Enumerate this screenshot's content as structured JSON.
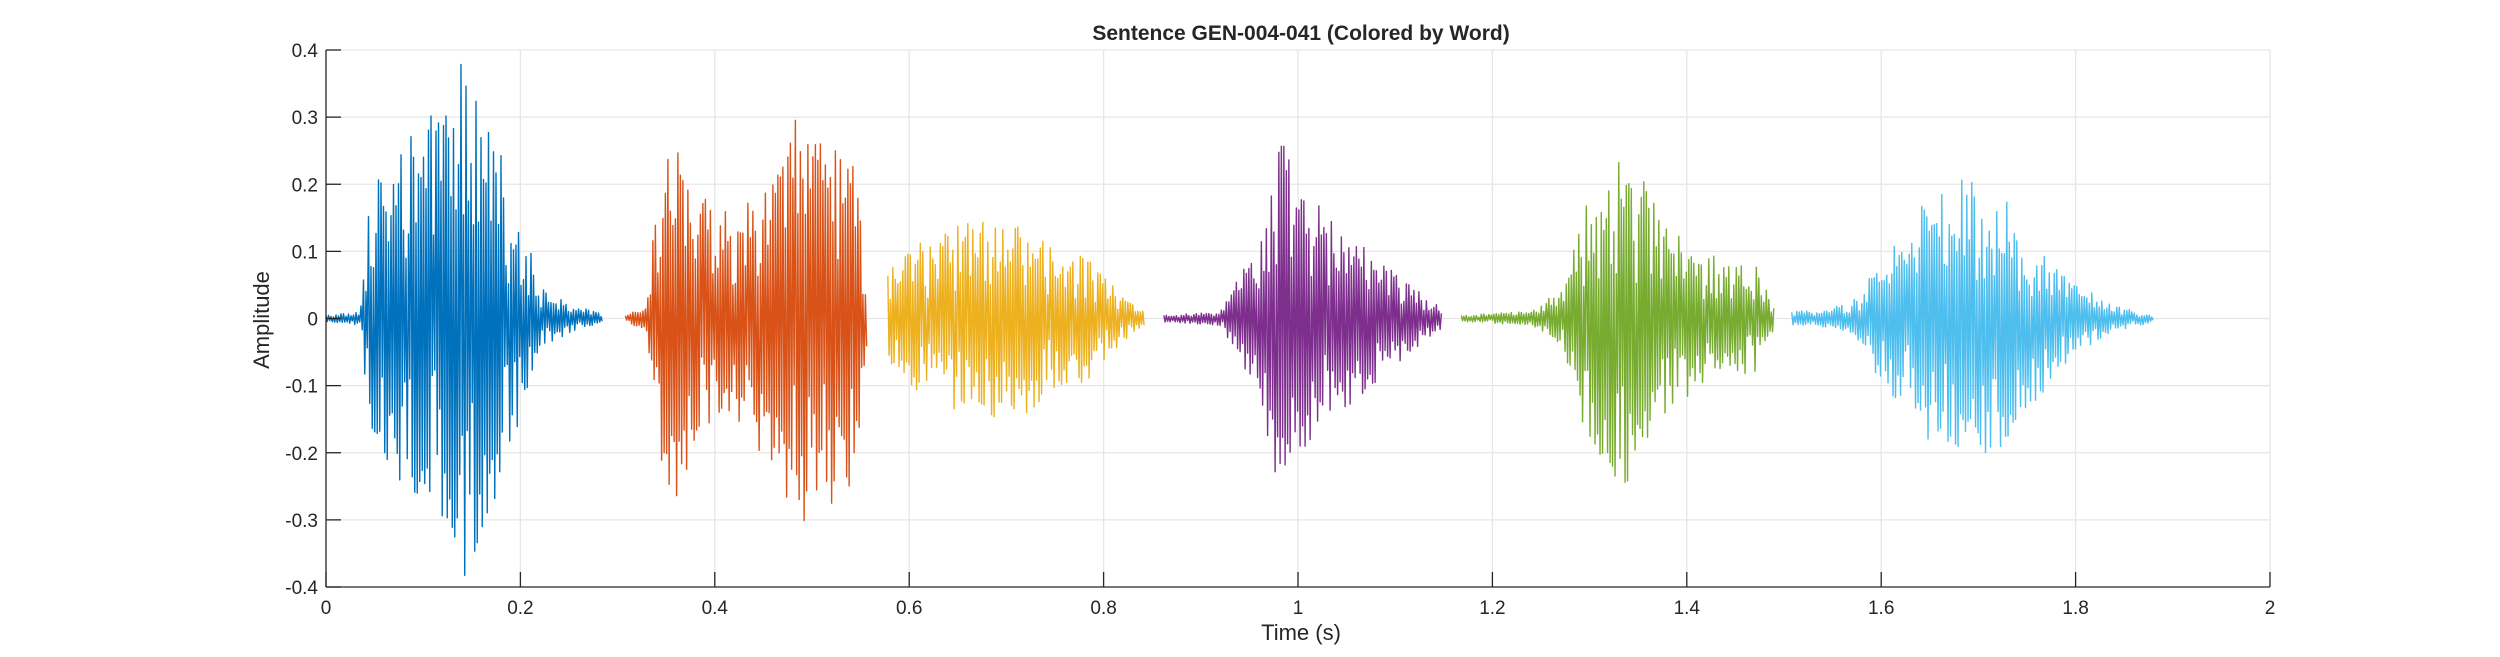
{
  "chart_data": {
    "type": "line",
    "title": "Sentence GEN-004-041 (Colored by Word)",
    "xlabel": "Time (s)",
    "ylabel": "Amplitude",
    "xlim": [
      0,
      2
    ],
    "ylim": [
      -0.4,
      0.4
    ],
    "xticks": [
      0,
      0.2,
      0.4,
      0.6,
      0.8,
      1,
      1.2,
      1.4,
      1.6,
      1.8,
      2
    ],
    "xtick_labels": [
      "0",
      "0.2",
      "0.4",
      "0.6",
      "0.8",
      "1",
      "1.2",
      "1.4",
      "1.6",
      "1.8",
      "2"
    ],
    "yticks": [
      -0.4,
      -0.3,
      -0.2,
      -0.1,
      0,
      0.1,
      0.2,
      0.3,
      0.4
    ],
    "ytick_labels": [
      "-0.4",
      "-0.3",
      "-0.2",
      "-0.1",
      "0",
      "0.1",
      "0.2",
      "0.3",
      "0.4"
    ],
    "grid": true,
    "series": [
      {
        "color": "#0072BD",
        "t_start": 0.0,
        "t_end": 0.285,
        "env": [
          [
            0.0,
            0.005
          ],
          [
            0.035,
            0.01
          ],
          [
            0.045,
            0.2
          ],
          [
            0.09,
            0.27
          ],
          [
            0.115,
            0.3
          ],
          [
            0.14,
            0.39
          ],
          [
            0.165,
            0.3
          ],
          [
            0.2,
            0.15
          ],
          [
            0.225,
            0.04
          ],
          [
            0.26,
            0.015
          ],
          [
            0.285,
            0.01
          ]
        ]
      },
      {
        "color": "#D95319",
        "t_start": 0.308,
        "t_end": 0.557,
        "env": [
          [
            0.308,
            0.005
          ],
          [
            0.33,
            0.02
          ],
          [
            0.345,
            0.25
          ],
          [
            0.36,
            0.29
          ],
          [
            0.38,
            0.18
          ],
          [
            0.42,
            0.15
          ],
          [
            0.46,
            0.22
          ],
          [
            0.49,
            0.31
          ],
          [
            0.52,
            0.27
          ],
          [
            0.545,
            0.24
          ],
          [
            0.557,
            0.04
          ]
        ]
      },
      {
        "color": "#EDB120",
        "t_start": 0.578,
        "t_end": 0.842,
        "env": [
          [
            0.578,
            0.07
          ],
          [
            0.6,
            0.1
          ],
          [
            0.63,
            0.14
          ],
          [
            0.67,
            0.15
          ],
          [
            0.72,
            0.14
          ],
          [
            0.78,
            0.1
          ],
          [
            0.81,
            0.05
          ],
          [
            0.842,
            0.01
          ]
        ]
      },
      {
        "color": "#7E2F8E",
        "t_start": 0.862,
        "t_end": 1.148,
        "env": [
          [
            0.862,
            0.005
          ],
          [
            0.92,
            0.01
          ],
          [
            0.935,
            0.05
          ],
          [
            0.96,
            0.12
          ],
          [
            0.975,
            0.22
          ],
          [
            0.99,
            0.28
          ],
          [
            1.02,
            0.17
          ],
          [
            1.05,
            0.13
          ],
          [
            1.1,
            0.07
          ],
          [
            1.148,
            0.015
          ]
        ]
      },
      {
        "color": "#77AC30",
        "t_start": 1.168,
        "t_end": 1.49,
        "env": [
          [
            1.168,
            0.005
          ],
          [
            1.235,
            0.01
          ],
          [
            1.25,
            0.02
          ],
          [
            1.275,
            0.05
          ],
          [
            1.29,
            0.16
          ],
          [
            1.32,
            0.22
          ],
          [
            1.34,
            0.26
          ],
          [
            1.37,
            0.16
          ],
          [
            1.42,
            0.1
          ],
          [
            1.47,
            0.08
          ],
          [
            1.49,
            0.02
          ]
        ]
      },
      {
        "color": "#4DBEEE",
        "t_start": 1.508,
        "t_end": 1.88,
        "env": [
          [
            1.508,
            0.01
          ],
          [
            1.55,
            0.015
          ],
          [
            1.575,
            0.03
          ],
          [
            1.6,
            0.1
          ],
          [
            1.63,
            0.14
          ],
          [
            1.66,
            0.2
          ],
          [
            1.69,
            0.22
          ],
          [
            1.72,
            0.2
          ],
          [
            1.76,
            0.12
          ],
          [
            1.8,
            0.05
          ],
          [
            1.84,
            0.02
          ],
          [
            1.88,
            0.005
          ]
        ]
      }
    ]
  }
}
